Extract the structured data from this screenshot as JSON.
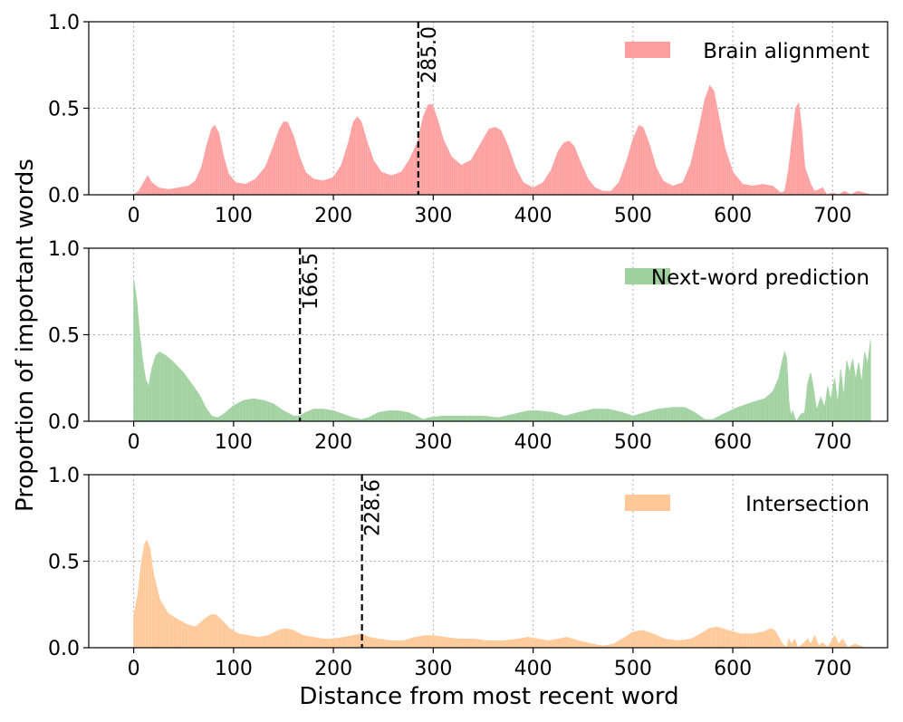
{
  "chart_data": {
    "type": "area",
    "xlabel": "Distance from most recent word",
    "ylabel": "Proportion of important words",
    "xlim": [
      -45,
      755
    ],
    "ylim": [
      0,
      1.0
    ],
    "xticks": [
      0,
      100,
      200,
      300,
      400,
      500,
      600,
      700
    ],
    "xtick_labels": [
      "0",
      "100",
      "200",
      "300",
      "400",
      "500",
      "600",
      "700"
    ],
    "yticks": [
      0.0,
      0.5,
      1.0
    ],
    "ytick_labels": [
      "0.0",
      "0.5",
      "1.0"
    ],
    "grid": true,
    "legend_position": "top-right",
    "panels": [
      {
        "name": "Brain alignment",
        "color": "#ff9e9e",
        "vline_x": 285.0,
        "vline_label": "285.0",
        "points": [
          [
            0,
            0.0
          ],
          [
            5,
            0.02
          ],
          [
            10,
            0.07
          ],
          [
            14,
            0.11
          ],
          [
            18,
            0.07
          ],
          [
            25,
            0.04
          ],
          [
            35,
            0.03
          ],
          [
            45,
            0.04
          ],
          [
            55,
            0.05
          ],
          [
            62,
            0.08
          ],
          [
            68,
            0.16
          ],
          [
            73,
            0.28
          ],
          [
            78,
            0.38
          ],
          [
            81,
            0.4
          ],
          [
            85,
            0.36
          ],
          [
            90,
            0.22
          ],
          [
            95,
            0.12
          ],
          [
            102,
            0.07
          ],
          [
            112,
            0.06
          ],
          [
            122,
            0.09
          ],
          [
            132,
            0.16
          ],
          [
            140,
            0.28
          ],
          [
            146,
            0.38
          ],
          [
            150,
            0.42
          ],
          [
            154,
            0.42
          ],
          [
            160,
            0.34
          ],
          [
            166,
            0.22
          ],
          [
            172,
            0.13
          ],
          [
            180,
            0.09
          ],
          [
            190,
            0.08
          ],
          [
            200,
            0.1
          ],
          [
            208,
            0.17
          ],
          [
            215,
            0.3
          ],
          [
            220,
            0.42
          ],
          [
            224,
            0.45
          ],
          [
            228,
            0.42
          ],
          [
            234,
            0.3
          ],
          [
            240,
            0.2
          ],
          [
            248,
            0.13
          ],
          [
            258,
            0.11
          ],
          [
            268,
            0.13
          ],
          [
            276,
            0.2
          ],
          [
            284,
            0.3
          ],
          [
            290,
            0.45
          ],
          [
            295,
            0.52
          ],
          [
            299,
            0.52
          ],
          [
            304,
            0.44
          ],
          [
            310,
            0.32
          ],
          [
            318,
            0.22
          ],
          [
            328,
            0.17
          ],
          [
            338,
            0.2
          ],
          [
            348,
            0.3
          ],
          [
            356,
            0.38
          ],
          [
            362,
            0.39
          ],
          [
            368,
            0.37
          ],
          [
            375,
            0.28
          ],
          [
            382,
            0.16
          ],
          [
            390,
            0.07
          ],
          [
            400,
            0.04
          ],
          [
            410,
            0.07
          ],
          [
            418,
            0.14
          ],
          [
            425,
            0.25
          ],
          [
            431,
            0.3
          ],
          [
            436,
            0.31
          ],
          [
            441,
            0.28
          ],
          [
            448,
            0.18
          ],
          [
            455,
            0.09
          ],
          [
            462,
            0.04
          ],
          [
            470,
            0.02
          ],
          [
            478,
            0.02
          ],
          [
            486,
            0.07
          ],
          [
            494,
            0.2
          ],
          [
            500,
            0.32
          ],
          [
            506,
            0.4
          ],
          [
            510,
            0.39
          ],
          [
            516,
            0.3
          ],
          [
            523,
            0.16
          ],
          [
            530,
            0.08
          ],
          [
            540,
            0.05
          ],
          [
            550,
            0.07
          ],
          [
            558,
            0.18
          ],
          [
            566,
            0.38
          ],
          [
            572,
            0.55
          ],
          [
            577,
            0.63
          ],
          [
            581,
            0.6
          ],
          [
            586,
            0.45
          ],
          [
            592,
            0.27
          ],
          [
            600,
            0.13
          ],
          [
            610,
            0.06
          ],
          [
            620,
            0.05
          ],
          [
            630,
            0.06
          ],
          [
            640,
            0.05
          ],
          [
            648,
            0.01
          ],
          [
            652,
            0.02
          ],
          [
            656,
            0.15
          ],
          [
            660,
            0.35
          ],
          [
            663,
            0.5
          ],
          [
            666,
            0.53
          ],
          [
            669,
            0.38
          ],
          [
            672,
            0.16
          ],
          [
            675,
            0.11
          ],
          [
            678,
            0.06
          ],
          [
            682,
            0.02
          ],
          [
            690,
            0.04
          ],
          [
            694,
            0.0
          ],
          [
            700,
            0.01
          ],
          [
            706,
            0.0
          ],
          [
            712,
            0.02
          ],
          [
            718,
            0.0
          ],
          [
            725,
            0.02
          ],
          [
            732,
            0.01
          ],
          [
            738,
            0.0
          ]
        ]
      },
      {
        "name": "Next-word prediction",
        "color": "#9fd19f",
        "vline_x": 166.5,
        "vline_label": "166.5",
        "points": [
          [
            0,
            0.82
          ],
          [
            3,
            0.7
          ],
          [
            6,
            0.5
          ],
          [
            9,
            0.35
          ],
          [
            12,
            0.24
          ],
          [
            15,
            0.2
          ],
          [
            18,
            0.3
          ],
          [
            22,
            0.38
          ],
          [
            26,
            0.4
          ],
          [
            32,
            0.38
          ],
          [
            40,
            0.34
          ],
          [
            50,
            0.28
          ],
          [
            60,
            0.2
          ],
          [
            66,
            0.15
          ],
          [
            72,
            0.08
          ],
          [
            78,
            0.03
          ],
          [
            84,
            0.02
          ],
          [
            90,
            0.04
          ],
          [
            100,
            0.09
          ],
          [
            110,
            0.12
          ],
          [
            120,
            0.13
          ],
          [
            130,
            0.12
          ],
          [
            140,
            0.1
          ],
          [
            150,
            0.06
          ],
          [
            160,
            0.03
          ],
          [
            166,
            0.03
          ],
          [
            172,
            0.05
          ],
          [
            180,
            0.07
          ],
          [
            190,
            0.07
          ],
          [
            200,
            0.06
          ],
          [
            210,
            0.04
          ],
          [
            220,
            0.02
          ],
          [
            228,
            0.01
          ],
          [
            235,
            0.02
          ],
          [
            245,
            0.05
          ],
          [
            255,
            0.06
          ],
          [
            265,
            0.06
          ],
          [
            275,
            0.05
          ],
          [
            283,
            0.03
          ],
          [
            290,
            0.01
          ],
          [
            296,
            0.02
          ],
          [
            310,
            0.03
          ],
          [
            330,
            0.03
          ],
          [
            350,
            0.03
          ],
          [
            365,
            0.02
          ],
          [
            380,
            0.04
          ],
          [
            395,
            0.06
          ],
          [
            405,
            0.06
          ],
          [
            420,
            0.05
          ],
          [
            432,
            0.03
          ],
          [
            445,
            0.05
          ],
          [
            460,
            0.07
          ],
          [
            475,
            0.07
          ],
          [
            490,
            0.05
          ],
          [
            500,
            0.03
          ],
          [
            512,
            0.05
          ],
          [
            525,
            0.07
          ],
          [
            540,
            0.08
          ],
          [
            552,
            0.08
          ],
          [
            562,
            0.05
          ],
          [
            572,
            0.01
          ],
          [
            580,
            0.01
          ],
          [
            590,
            0.04
          ],
          [
            605,
            0.08
          ],
          [
            620,
            0.11
          ],
          [
            632,
            0.13
          ],
          [
            640,
            0.17
          ],
          [
            646,
            0.25
          ],
          [
            650,
            0.36
          ],
          [
            652,
            0.4
          ],
          [
            654,
            0.36
          ],
          [
            656,
            0.12
          ],
          [
            658,
            0.03
          ],
          [
            660,
            0.06
          ],
          [
            662,
            0.02
          ],
          [
            664,
            0.0
          ],
          [
            668,
            0.04
          ],
          [
            672,
            0.05
          ],
          [
            675,
            0.22
          ],
          [
            678,
            0.28
          ],
          [
            681,
            0.18
          ],
          [
            684,
            0.06
          ],
          [
            688,
            0.14
          ],
          [
            692,
            0.08
          ],
          [
            695,
            0.2
          ],
          [
            698,
            0.12
          ],
          [
            702,
            0.25
          ],
          [
            705,
            0.1
          ],
          [
            708,
            0.3
          ],
          [
            711,
            0.14
          ],
          [
            714,
            0.35
          ],
          [
            717,
            0.28
          ],
          [
            720,
            0.36
          ],
          [
            723,
            0.24
          ],
          [
            726,
            0.34
          ],
          [
            729,
            0.22
          ],
          [
            732,
            0.4
          ],
          [
            735,
            0.33
          ],
          [
            738,
            0.47
          ]
        ]
      },
      {
        "name": "Intersection",
        "color": "#ffc896",
        "vline_x": 228.6,
        "vline_label": "228.6",
        "points": [
          [
            0,
            0.18
          ],
          [
            4,
            0.3
          ],
          [
            8,
            0.5
          ],
          [
            11,
            0.6
          ],
          [
            13,
            0.62
          ],
          [
            16,
            0.58
          ],
          [
            20,
            0.42
          ],
          [
            26,
            0.28
          ],
          [
            34,
            0.2
          ],
          [
            45,
            0.16
          ],
          [
            55,
            0.13
          ],
          [
            62,
            0.12
          ],
          [
            70,
            0.16
          ],
          [
            77,
            0.19
          ],
          [
            82,
            0.19
          ],
          [
            88,
            0.16
          ],
          [
            96,
            0.11
          ],
          [
            105,
            0.08
          ],
          [
            115,
            0.07
          ],
          [
            125,
            0.06
          ],
          [
            135,
            0.07
          ],
          [
            145,
            0.1
          ],
          [
            152,
            0.11
          ],
          [
            160,
            0.1
          ],
          [
            170,
            0.07
          ],
          [
            180,
            0.06
          ],
          [
            190,
            0.05
          ],
          [
            200,
            0.05
          ],
          [
            210,
            0.06
          ],
          [
            220,
            0.07
          ],
          [
            228,
            0.08
          ],
          [
            236,
            0.06
          ],
          [
            245,
            0.05
          ],
          [
            258,
            0.04
          ],
          [
            270,
            0.04
          ],
          [
            282,
            0.06
          ],
          [
            292,
            0.07
          ],
          [
            300,
            0.07
          ],
          [
            312,
            0.06
          ],
          [
            325,
            0.05
          ],
          [
            340,
            0.05
          ],
          [
            355,
            0.04
          ],
          [
            370,
            0.04
          ],
          [
            385,
            0.05
          ],
          [
            395,
            0.06
          ],
          [
            405,
            0.05
          ],
          [
            415,
            0.04
          ],
          [
            425,
            0.05
          ],
          [
            434,
            0.06
          ],
          [
            445,
            0.04
          ],
          [
            460,
            0.02
          ],
          [
            470,
            0.01
          ],
          [
            480,
            0.02
          ],
          [
            492,
            0.06
          ],
          [
            500,
            0.09
          ],
          [
            510,
            0.1
          ],
          [
            520,
            0.08
          ],
          [
            532,
            0.05
          ],
          [
            545,
            0.04
          ],
          [
            558,
            0.05
          ],
          [
            568,
            0.08
          ],
          [
            576,
            0.11
          ],
          [
            584,
            0.12
          ],
          [
            595,
            0.1
          ],
          [
            608,
            0.08
          ],
          [
            620,
            0.08
          ],
          [
            630,
            0.09
          ],
          [
            638,
            0.11
          ],
          [
            642,
            0.1
          ],
          [
            646,
            0.06
          ],
          [
            650,
            0.02
          ],
          [
            654,
            0.0
          ],
          [
            656,
            0.05
          ],
          [
            659,
            0.02
          ],
          [
            662,
            0.05
          ],
          [
            665,
            0.0
          ],
          [
            670,
            0.02
          ],
          [
            675,
            0.05
          ],
          [
            678,
            0.02
          ],
          [
            682,
            0.07
          ],
          [
            686,
            0.01
          ],
          [
            690,
            0.03
          ],
          [
            695,
            0.0
          ],
          [
            702,
            0.07
          ],
          [
            706,
            0.02
          ],
          [
            710,
            0.05
          ],
          [
            715,
            0.0
          ],
          [
            722,
            0.02
          ],
          [
            728,
            0.01
          ],
          [
            732,
            0.0
          ]
        ]
      }
    ]
  }
}
